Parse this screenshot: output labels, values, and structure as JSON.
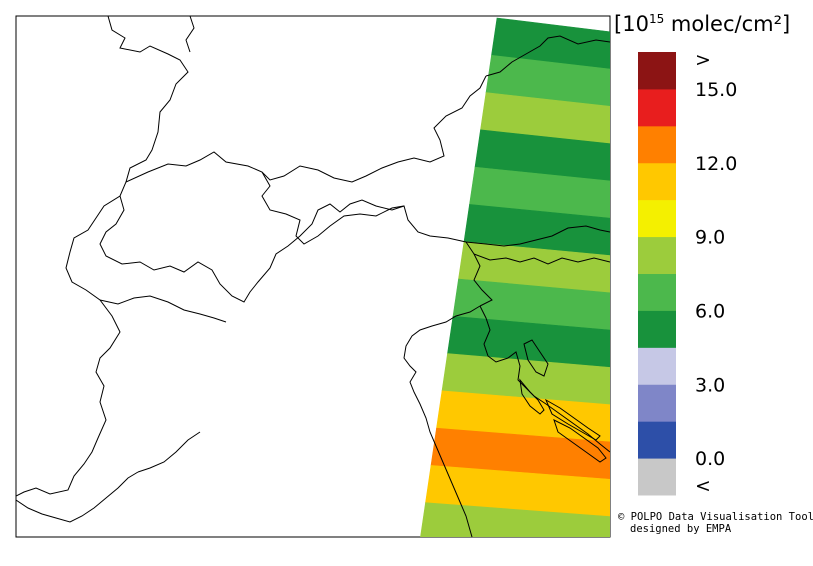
{
  "legend": {
    "unit_base": "10",
    "unit_exponent": "15",
    "unit_suffix": " molec/cm²",
    "bins": [
      {
        "label": "< 0.0",
        "color": "#c8c8c8"
      },
      {
        "label": "0.0–1.5",
        "color": "#2d4fa8"
      },
      {
        "label": "1.5–3.0",
        "color": "#7f86c8"
      },
      {
        "label": "3.0–4.5",
        "color": "#c6c8e6"
      },
      {
        "label": "4.5–6.0",
        "color": "#18923c"
      },
      {
        "label": "6.0–7.5",
        "color": "#4cb84c"
      },
      {
        "label": "7.5–9.0",
        "color": "#9ccc3c"
      },
      {
        "label": "9.0–10.5",
        "color": "#f4f000"
      },
      {
        "label": "10.5–12.0",
        "color": "#ffc800"
      },
      {
        "label": "12.0–13.5",
        "color": "#ff8000"
      },
      {
        "label": "13.5–15.0",
        "color": "#e81e1e"
      },
      {
        "label": "> 15.0",
        "color": "#8c1414"
      }
    ],
    "ticks": [
      {
        "label": ">",
        "bin_edge": 12
      },
      {
        "label": "15.0",
        "bin_edge": 11
      },
      {
        "label": "12.0",
        "bin_edge": 9
      },
      {
        "label": "9.0",
        "bin_edge": 7
      },
      {
        "label": "6.0",
        "bin_edge": 5
      },
      {
        "label": "3.0",
        "bin_edge": 3
      },
      {
        "label": "0.0",
        "bin_edge": 1
      },
      {
        "label": "<",
        "bin_edge": 0
      }
    ]
  },
  "swath_rows": [
    {
      "value_bin": 4,
      "color": "#18923c"
    },
    {
      "value_bin": 5,
      "color": "#4cb84c"
    },
    {
      "value_bin": 6,
      "color": "#9ccc3c"
    },
    {
      "value_bin": 4,
      "color": "#18923c"
    },
    {
      "value_bin": 5,
      "color": "#4cb84c"
    },
    {
      "value_bin": 4,
      "color": "#18923c"
    },
    {
      "value_bin": 6,
      "color": "#9ccc3c"
    },
    {
      "value_bin": 5,
      "color": "#4cb84c"
    },
    {
      "value_bin": 4,
      "color": "#18923c"
    },
    {
      "value_bin": 6,
      "color": "#9ccc3c"
    },
    {
      "value_bin": 8,
      "color": "#ffc800"
    },
    {
      "value_bin": 9,
      "color": "#ff8000"
    },
    {
      "value_bin": 8,
      "color": "#ffc800"
    },
    {
      "value_bin": 6,
      "color": "#9ccc3c"
    }
  ],
  "credit": {
    "line1": "© POLPO Data Visualisation Tool",
    "line2": "designed by EMPA"
  }
}
